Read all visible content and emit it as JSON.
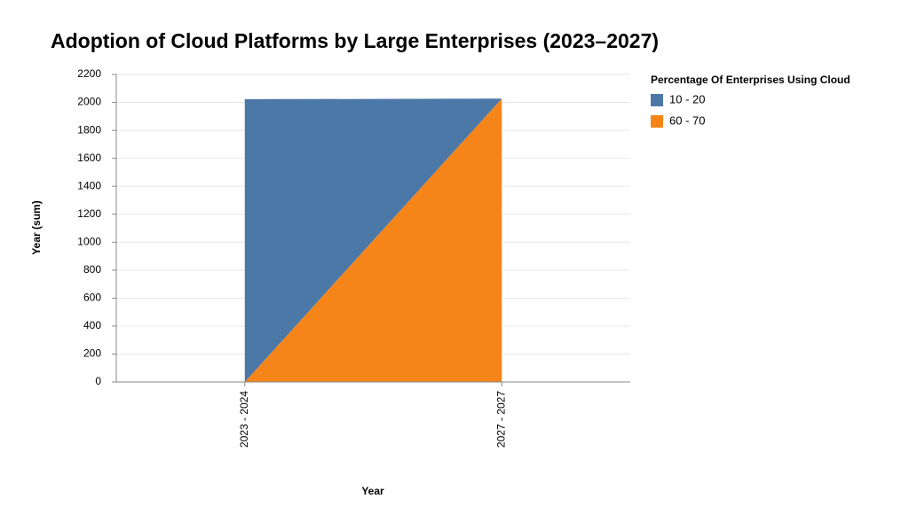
{
  "chart_data": {
    "type": "area",
    "stacked": true,
    "title": "Adoption of Cloud Platforms by Large Enterprises (2023–2027)",
    "x_label": "Year",
    "y_label": "Year (sum)",
    "legend_title": "Percentage Of Enterprises Using Cloud",
    "categories": [
      "2023 - 2024",
      "2027 - 2027"
    ],
    "series": [
      {
        "name": "10 - 20",
        "color": "#4c78a8",
        "values": [
          2023,
          0
        ]
      },
      {
        "name": "60 - 70",
        "color": "#f58518",
        "values": [
          0,
          2027
        ]
      }
    ],
    "ylim": [
      0,
      2200
    ],
    "yticks": [
      0,
      200,
      400,
      600,
      800,
      1000,
      1200,
      1400,
      1600,
      1800,
      2000,
      2200
    ],
    "grid": true,
    "legend": "right"
  }
}
